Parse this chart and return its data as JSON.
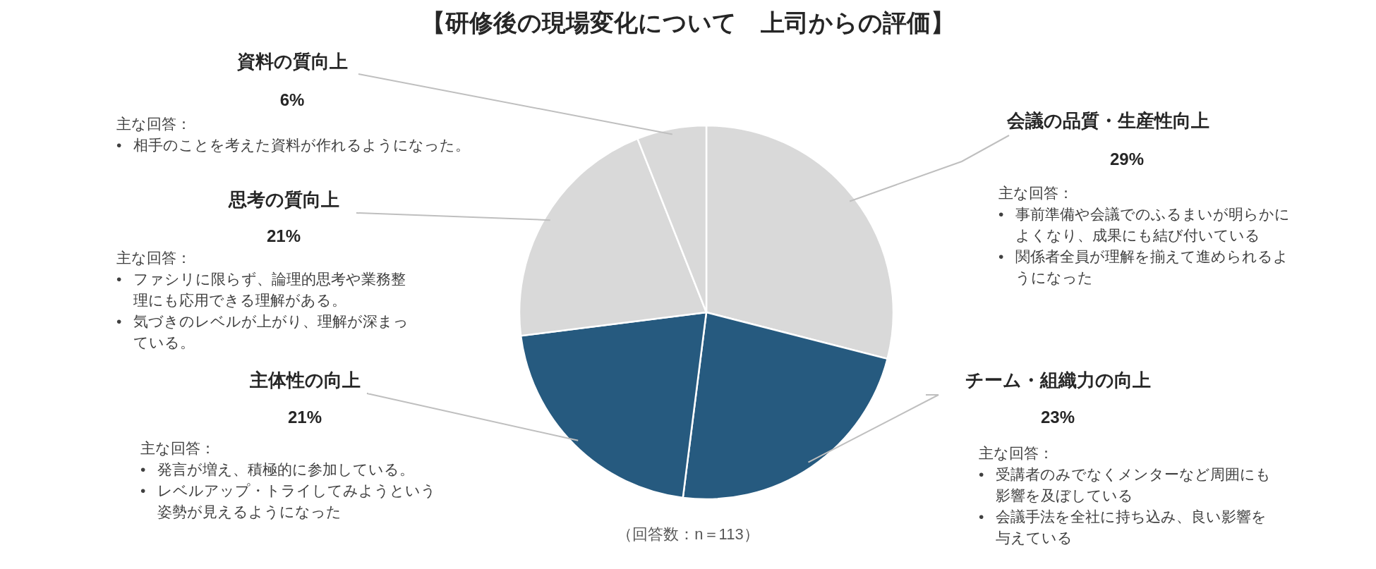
{
  "chart_data": {
    "type": "pie",
    "title": "【研修後の現場変化について　上司からの評価】",
    "categories": [
      "会議の品質・生産性向上",
      "チーム・組織力の向上",
      "主体性の向上",
      "思考の質向上",
      "資料の質向上"
    ],
    "values": [
      29,
      23,
      21,
      21,
      6
    ],
    "colors": [
      "#d9d9d9",
      "#265a7f",
      "#265a7f",
      "#d9d9d9",
      "#d9d9d9"
    ],
    "value_labels": [
      "29%",
      "23%",
      "21%",
      "21%",
      "6%"
    ],
    "annotations": [
      "主な回答：\n•　事前準備や会議でのふるまいが明らかによくなり、成果にも結び付いている\n•　関係者全員が理解を揃えて進められるようになった",
      "主な回答：\n•　受講者のみでなくメンターなど周囲にも影響を及ぼしている\n•　会議手法を全社に持ち込み、良い影響を与えている",
      "主な回答：\n•　発言が増え、積極的に参加している。\n•　レベルアップ・トライしてみようという姿勢が見えるようになった",
      "主な回答：\n•　ファシリに限らず、論理的思考や業務整理にも応用できる理解がある。\n•　気づきのレベルが上がり、理解が深まっている。",
      "主な回答：\n•　相手のことを考えた資料が作れるようになった。",
      "（回答数：n＝113）"
    ]
  }
}
